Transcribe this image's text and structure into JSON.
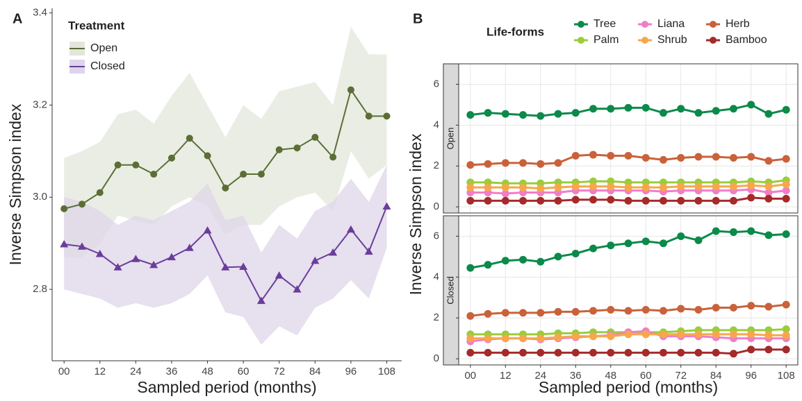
{
  "chart_data": [
    {
      "type": "line",
      "panel_label": "A",
      "legend_title": "Treatment",
      "xlabel": "Sampled period (months)",
      "ylabel": "Inverse Simpson index",
      "x": [
        0,
        6,
        12,
        18,
        24,
        30,
        36,
        42,
        48,
        54,
        60,
        66,
        72,
        78,
        84,
        90,
        96,
        102,
        108
      ],
      "xlim": [
        -4,
        113
      ],
      "xticks": [
        {
          "value": 0,
          "label": "00"
        },
        12,
        24,
        36,
        48,
        60,
        72,
        84,
        96,
        108
      ],
      "ylim": [
        2.645,
        3.41
      ],
      "yticks": [
        2.8,
        {
          "value": 3.0,
          "label": "3.0"
        },
        3.2,
        3.4
      ],
      "grid": false,
      "series": [
        {
          "name": "Open",
          "color": "#5b6e34",
          "band_color": "#e3e7db",
          "marker": "circle",
          "values": [
            2.975,
            2.985,
            3.01,
            3.07,
            3.07,
            3.05,
            3.085,
            3.128,
            3.09,
            3.02,
            3.05,
            3.05,
            3.103,
            3.107,
            3.13,
            3.087,
            3.233,
            3.176,
            3.176
          ],
          "upper": [
            3.085,
            3.1,
            3.12,
            3.18,
            3.19,
            3.16,
            3.22,
            3.27,
            3.2,
            3.13,
            3.2,
            3.17,
            3.23,
            3.24,
            3.25,
            3.2,
            3.37,
            3.31,
            3.31
          ],
          "lower": [
            2.87,
            2.87,
            2.9,
            2.96,
            2.95,
            2.94,
            2.98,
            3.0,
            2.98,
            2.92,
            2.94,
            2.94,
            2.98,
            3.0,
            3.01,
            2.97,
            3.1,
            3.04,
            3.07
          ]
        },
        {
          "name": "Closed",
          "color": "#6a3d9a",
          "band_color": "#ddd5ea",
          "marker": "triangle",
          "values": [
            2.898,
            2.893,
            2.877,
            2.848,
            2.866,
            2.853,
            2.87,
            2.89,
            2.928,
            2.848,
            2.849,
            2.775,
            2.83,
            2.8,
            2.862,
            2.88,
            2.93,
            2.882,
            2.98
          ],
          "upper": [
            3.0,
            2.99,
            2.97,
            2.94,
            2.96,
            2.95,
            2.97,
            2.99,
            3.03,
            2.95,
            2.96,
            2.88,
            2.94,
            2.91,
            2.97,
            2.99,
            3.04,
            2.99,
            3.07
          ],
          "lower": [
            2.8,
            2.79,
            2.78,
            2.76,
            2.77,
            2.76,
            2.77,
            2.79,
            2.83,
            2.75,
            2.74,
            2.68,
            2.72,
            2.7,
            2.76,
            2.78,
            2.82,
            2.78,
            2.89
          ]
        }
      ]
    },
    {
      "type": "line",
      "panel_label": "B",
      "legend_title": "Life-forms",
      "xlabel": "Sampled period (months)",
      "ylabel": "Inverse Simpson index",
      "facets": [
        "Open",
        "Closed"
      ],
      "x": [
        0,
        6,
        12,
        18,
        24,
        30,
        36,
        42,
        48,
        54,
        60,
        66,
        72,
        78,
        84,
        90,
        96,
        102,
        108
      ],
      "xlim": [
        -4,
        112
      ],
      "xticks": [
        {
          "value": 0,
          "label": "00"
        },
        12,
        24,
        36,
        48,
        60,
        72,
        84,
        96,
        108
      ],
      "ylim": [
        -0.3,
        7.0
      ],
      "yticks": [
        0,
        2,
        4,
        6
      ],
      "grid": true,
      "series": [
        {
          "name": "Tree",
          "color": "#0b8a4a",
          "values": [
            [
              4.5,
              4.6,
              4.55,
              4.5,
              4.45,
              4.55,
              4.6,
              4.8,
              4.8,
              4.85,
              4.85,
              4.6,
              4.8,
              4.6,
              4.7,
              4.8,
              5.0,
              4.55,
              4.75
            ],
            [
              4.45,
              4.6,
              4.8,
              4.85,
              4.75,
              5.0,
              5.15,
              5.4,
              5.55,
              5.65,
              5.75,
              5.65,
              6.0,
              5.8,
              6.25,
              6.2,
              6.25,
              6.05,
              6.1
            ]
          ]
        },
        {
          "name": "Palm",
          "color": "#9acd3c",
          "values": [
            [
              1.2,
              1.2,
              1.15,
              1.15,
              1.15,
              1.2,
              1.2,
              1.25,
              1.25,
              1.2,
              1.2,
              1.2,
              1.2,
              1.2,
              1.2,
              1.2,
              1.25,
              1.2,
              1.3
            ],
            [
              1.2,
              1.2,
              1.2,
              1.2,
              1.2,
              1.25,
              1.25,
              1.3,
              1.3,
              1.3,
              1.3,
              1.3,
              1.35,
              1.4,
              1.4,
              1.4,
              1.4,
              1.4,
              1.45
            ]
          ]
        },
        {
          "name": "Liana",
          "color": "#f07ec6",
          "values": [
            [
              0.7,
              0.7,
              0.65,
              0.7,
              0.7,
              0.7,
              0.8,
              0.8,
              0.8,
              0.8,
              0.8,
              0.75,
              0.8,
              0.8,
              0.8,
              0.8,
              0.85,
              0.7,
              0.8
            ],
            [
              0.85,
              0.95,
              1.0,
              1.0,
              0.95,
              1.0,
              1.05,
              1.1,
              1.15,
              1.3,
              1.35,
              1.1,
              1.1,
              1.1,
              1.05,
              1.0,
              1.0,
              1.0,
              1.0
            ]
          ]
        },
        {
          "name": "Shrub",
          "color": "#f7a74b",
          "values": [
            [
              0.95,
              0.95,
              0.95,
              0.95,
              0.9,
              0.95,
              1.0,
              1.0,
              1.0,
              0.95,
              0.95,
              0.95,
              1.0,
              1.0,
              1.0,
              1.0,
              1.05,
              1.0,
              1.1
            ],
            [
              1.0,
              1.0,
              1.0,
              1.0,
              1.0,
              1.05,
              1.1,
              1.1,
              1.1,
              1.2,
              1.2,
              1.2,
              1.2,
              1.2,
              1.2,
              1.2,
              1.2,
              1.15,
              1.15
            ]
          ]
        },
        {
          "name": "Herb",
          "color": "#c9623b",
          "values": [
            [
              2.05,
              2.1,
              2.15,
              2.15,
              2.1,
              2.15,
              2.5,
              2.55,
              2.5,
              2.5,
              2.4,
              2.3,
              2.4,
              2.45,
              2.45,
              2.4,
              2.45,
              2.25,
              2.35
            ],
            [
              2.1,
              2.2,
              2.25,
              2.25,
              2.25,
              2.3,
              2.3,
              2.35,
              2.4,
              2.35,
              2.4,
              2.35,
              2.45,
              2.4,
              2.5,
              2.5,
              2.6,
              2.55,
              2.65
            ]
          ]
        },
        {
          "name": "Bamboo",
          "color": "#a52a2a",
          "values": [
            [
              0.3,
              0.3,
              0.3,
              0.3,
              0.3,
              0.3,
              0.35,
              0.35,
              0.35,
              0.3,
              0.3,
              0.3,
              0.3,
              0.3,
              0.3,
              0.3,
              0.45,
              0.4,
              0.4
            ],
            [
              0.3,
              0.3,
              0.3,
              0.3,
              0.3,
              0.3,
              0.3,
              0.3,
              0.3,
              0.3,
              0.3,
              0.3,
              0.3,
              0.3,
              0.3,
              0.25,
              0.45,
              0.45,
              0.45
            ]
          ]
        }
      ]
    }
  ]
}
